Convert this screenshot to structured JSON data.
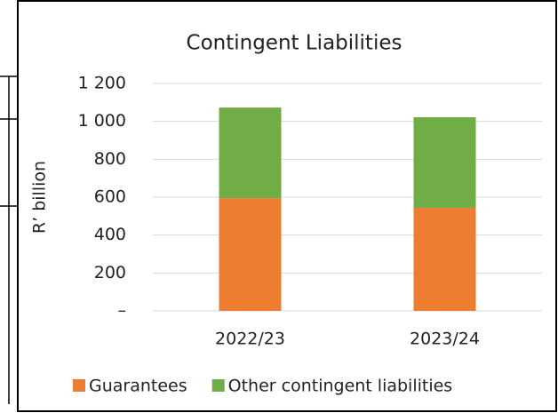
{
  "chart_data": {
    "type": "stacked_bar",
    "title": "Contingent Liabilities",
    "y_label": "R’ billion",
    "categories": [
      "2022/23",
      "2023/24"
    ],
    "series": [
      {
        "name": "Guarantees",
        "color": "#ed7d31",
        "values": [
          595,
          544
        ]
      },
      {
        "name": "Other contingent liabilities",
        "color": "#70ad47",
        "values": [
          478,
          478
        ]
      }
    ],
    "ylim": [
      0,
      1200
    ],
    "yticks": [
      {
        "value": 0,
        "label": "–"
      },
      200,
      400,
      600,
      800,
      {
        "value": 1000,
        "label": "1 000"
      },
      {
        "value": 1200,
        "label": "1 200"
      }
    ],
    "grid": true,
    "legend": "bottom"
  }
}
